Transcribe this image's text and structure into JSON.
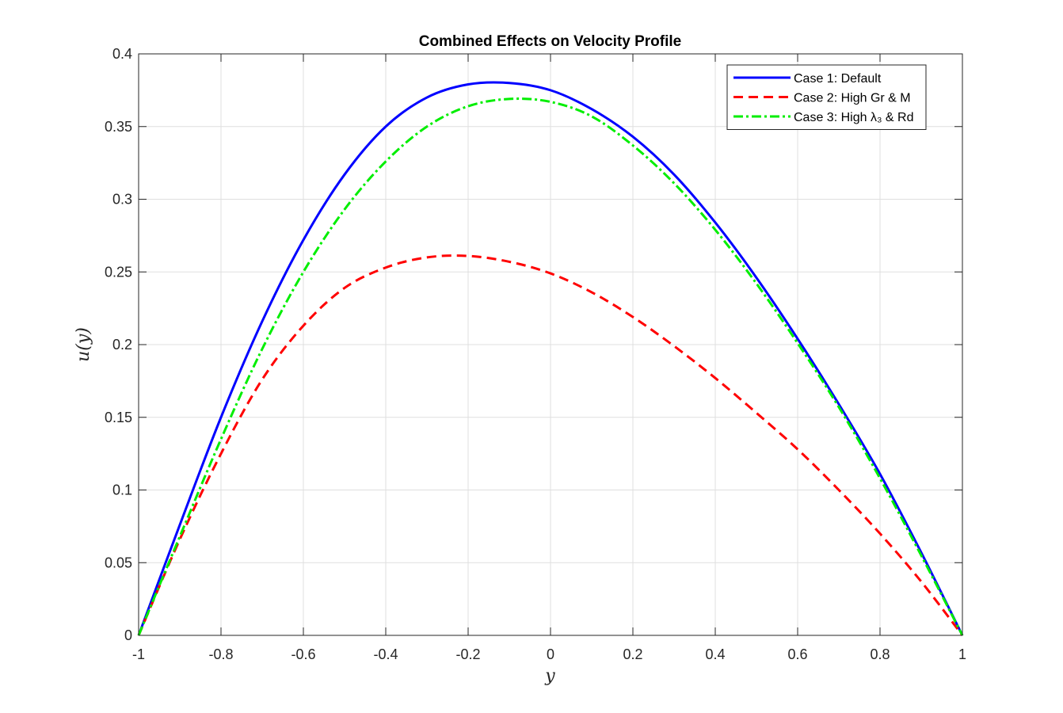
{
  "chart_data": {
    "type": "line",
    "title": "Combined Effects on Velocity Profile",
    "xlabel": "y",
    "ylabel": "u(y)",
    "xlim": [
      -1,
      1
    ],
    "ylim": [
      0,
      0.4
    ],
    "x_ticks": [
      "-1",
      "-0.8",
      "-0.6",
      "-0.4",
      "-0.2",
      "0",
      "0.2",
      "0.4",
      "0.6",
      "0.8",
      "1"
    ],
    "y_ticks": [
      "0",
      "0.05",
      "0.1",
      "0.15",
      "0.2",
      "0.25",
      "0.3",
      "0.35",
      "0.4"
    ],
    "grid": true,
    "legend_position": "top-right",
    "x": [
      -1,
      -0.9,
      -0.8,
      -0.7,
      -0.6,
      -0.5,
      -0.4,
      -0.3,
      -0.2,
      -0.1,
      0,
      0.1,
      0.2,
      0.3,
      0.4,
      0.5,
      0.6,
      0.7,
      0.8,
      0.9,
      1
    ],
    "series": [
      {
        "name": "Case 1: Default",
        "color": "#0000ff",
        "style": "solid",
        "values": [
          0,
          0.076,
          0.15,
          0.216,
          0.272,
          0.317,
          0.35,
          0.37,
          0.379,
          0.38,
          0.375,
          0.362,
          0.343,
          0.317,
          0.284,
          0.246,
          0.204,
          0.159,
          0.111,
          0.057,
          0
        ]
      },
      {
        "name": "Case 2: High Gr & M",
        "color": "#ff0000",
        "style": "dashed",
        "values": [
          0,
          0.066,
          0.125,
          0.176,
          0.213,
          0.239,
          0.253,
          0.26,
          0.261,
          0.257,
          0.249,
          0.236,
          0.219,
          0.199,
          0.177,
          0.153,
          0.128,
          0.1,
          0.07,
          0.037,
          0
        ]
      },
      {
        "name": "Case 3: High λ₃ & Rd",
        "color": "#00ee00",
        "style": "dashdot",
        "values": [
          0,
          0.068,
          0.135,
          0.197,
          0.25,
          0.293,
          0.326,
          0.35,
          0.364,
          0.369,
          0.367,
          0.357,
          0.337,
          0.311,
          0.279,
          0.242,
          0.201,
          0.157,
          0.108,
          0.055,
          0
        ]
      }
    ]
  }
}
